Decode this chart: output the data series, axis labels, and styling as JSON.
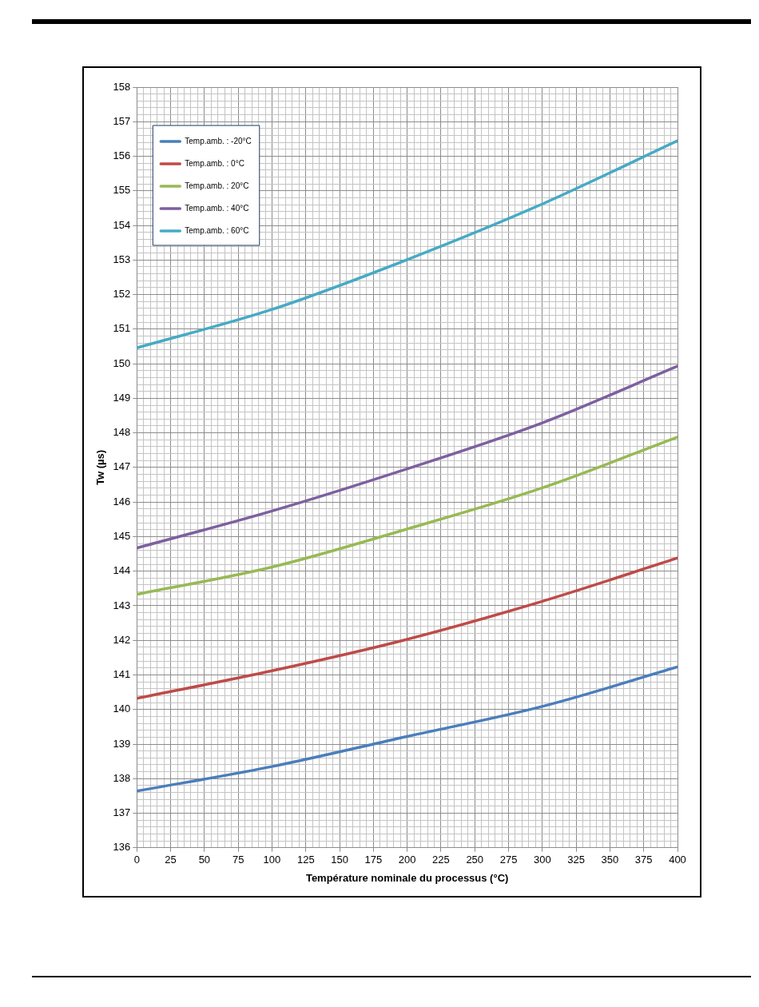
{
  "chart_data": {
    "type": "line",
    "xlabel": "Température nominale du processus (°C)",
    "ylabel": "Tw (µs)",
    "x": [
      0,
      100,
      200,
      300,
      400
    ],
    "series": [
      {
        "name": "Temp.amb. : -20°C",
        "color": "#4a7ebb",
        "values": [
          137.64,
          138.35,
          139.22,
          140.09,
          141.23
        ]
      },
      {
        "name": "Temp.amb. : 0°C",
        "color": "#be4b48",
        "values": [
          140.32,
          141.12,
          142.03,
          143.13,
          144.38
        ]
      },
      {
        "name": "Temp.amb. : 20°C",
        "color": "#98b954",
        "values": [
          143.33,
          144.12,
          145.22,
          146.41,
          147.88
        ]
      },
      {
        "name": "Temp.amb. : 40°C",
        "color": "#7d60a0",
        "values": [
          144.67,
          145.74,
          146.96,
          148.29,
          149.93
        ]
      },
      {
        "name": "Temp.amb. : 60°C",
        "color": "#46aac5",
        "values": [
          150.46,
          151.57,
          153.01,
          154.62,
          156.45
        ]
      }
    ],
    "xlim": [
      0,
      400
    ],
    "xticks": [
      0,
      {
        "value": 5,
        "label": null
      },
      {
        "value": 10,
        "label": null
      },
      {
        "value": 15,
        "label": null
      },
      {
        "value": 20,
        "label": null
      },
      25,
      {
        "value": 30,
        "label": null
      },
      {
        "value": 35,
        "label": null
      },
      {
        "value": 40,
        "label": null
      },
      {
        "value": 45,
        "label": null
      },
      50,
      {
        "value": 55,
        "label": null
      },
      {
        "value": 60,
        "label": null
      },
      {
        "value": 65,
        "label": null
      },
      {
        "value": 70,
        "label": null
      },
      75,
      {
        "value": 80,
        "label": null
      },
      {
        "value": 85,
        "label": null
      },
      {
        "value": 90,
        "label": null
      },
      {
        "value": 95,
        "label": null
      },
      100,
      {
        "value": 105,
        "label": null
      },
      {
        "value": 110,
        "label": null
      },
      {
        "value": 115,
        "label": null
      },
      {
        "value": 120,
        "label": null
      },
      125,
      {
        "value": 130,
        "label": null
      },
      {
        "value": 135,
        "label": null
      },
      {
        "value": 140,
        "label": null
      },
      {
        "value": 145,
        "label": null
      },
      150,
      {
        "value": 155,
        "label": null
      },
      {
        "value": 160,
        "label": null
      },
      {
        "value": 165,
        "label": null
      },
      {
        "value": 170,
        "label": null
      },
      175,
      {
        "value": 180,
        "label": null
      },
      {
        "value": 185,
        "label": null
      },
      {
        "value": 190,
        "label": null
      },
      {
        "value": 195,
        "label": null
      },
      200,
      {
        "value": 205,
        "label": null
      },
      {
        "value": 210,
        "label": null
      },
      {
        "value": 215,
        "label": null
      },
      {
        "value": 220,
        "label": null
      },
      225,
      {
        "value": 230,
        "label": null
      },
      {
        "value": 235,
        "label": null
      },
      {
        "value": 240,
        "label": null
      },
      {
        "value": 245,
        "label": null
      },
      250,
      {
        "value": 255,
        "label": null
      },
      {
        "value": 260,
        "label": null
      },
      {
        "value": 265,
        "label": null
      },
      {
        "value": 270,
        "label": null
      },
      275,
      {
        "value": 280,
        "label": null
      },
      {
        "value": 285,
        "label": null
      },
      {
        "value": 290,
        "label": null
      },
      {
        "value": 295,
        "label": null
      },
      300,
      {
        "value": 305,
        "label": null
      },
      {
        "value": 310,
        "label": null
      },
      {
        "value": 315,
        "label": null
      },
      {
        "value": 320,
        "label": null
      },
      325,
      {
        "value": 330,
        "label": null
      },
      {
        "value": 335,
        "label": null
      },
      {
        "value": 340,
        "label": null
      },
      {
        "value": 345,
        "label": null
      },
      350,
      {
        "value": 355,
        "label": null
      },
      {
        "value": 360,
        "label": null
      },
      {
        "value": 365,
        "label": null
      },
      {
        "value": 370,
        "label": null
      },
      375,
      {
        "value": 380,
        "label": null
      },
      {
        "value": 385,
        "label": null
      },
      {
        "value": 390,
        "label": null
      },
      {
        "value": 395,
        "label": null
      },
      400
    ],
    "ylim": [
      136,
      158
    ],
    "yticks": [
      136,
      {
        "value": 136.2,
        "label": null
      },
      {
        "value": 136.4,
        "label": null
      },
      {
        "value": 136.6,
        "label": null
      },
      {
        "value": 136.8,
        "label": null
      },
      137,
      {
        "value": 137.2,
        "label": null
      },
      {
        "value": 137.4,
        "label": null
      },
      {
        "value": 137.6,
        "label": null
      },
      {
        "value": 137.8,
        "label": null
      },
      138,
      {
        "value": 138.2,
        "label": null
      },
      {
        "value": 138.4,
        "label": null
      },
      {
        "value": 138.6,
        "label": null
      },
      {
        "value": 138.8,
        "label": null
      },
      139,
      {
        "value": 139.2,
        "label": null
      },
      {
        "value": 139.4,
        "label": null
      },
      {
        "value": 139.6,
        "label": null
      },
      {
        "value": 139.8,
        "label": null
      },
      140,
      {
        "value": 140.2,
        "label": null
      },
      {
        "value": 140.4,
        "label": null
      },
      {
        "value": 140.6,
        "label": null
      },
      {
        "value": 140.8,
        "label": null
      },
      141,
      {
        "value": 141.2,
        "label": null
      },
      {
        "value": 141.4,
        "label": null
      },
      {
        "value": 141.6,
        "label": null
      },
      {
        "value": 141.8,
        "label": null
      },
      142,
      {
        "value": 142.2,
        "label": null
      },
      {
        "value": 142.4,
        "label": null
      },
      {
        "value": 142.6,
        "label": null
      },
      {
        "value": 142.8,
        "label": null
      },
      143,
      {
        "value": 143.2,
        "label": null
      },
      {
        "value": 143.4,
        "label": null
      },
      {
        "value": 143.6,
        "label": null
      },
      {
        "value": 143.8,
        "label": null
      },
      144,
      {
        "value": 144.2,
        "label": null
      },
      {
        "value": 144.4,
        "label": null
      },
      {
        "value": 144.6,
        "label": null
      },
      {
        "value": 144.8,
        "label": null
      },
      145,
      {
        "value": 145.2,
        "label": null
      },
      {
        "value": 145.4,
        "label": null
      },
      {
        "value": 145.6,
        "label": null
      },
      {
        "value": 145.8,
        "label": null
      },
      146,
      {
        "value": 146.2,
        "label": null
      },
      {
        "value": 146.4,
        "label": null
      },
      {
        "value": 146.6,
        "label": null
      },
      {
        "value": 146.8,
        "label": null
      },
      147,
      {
        "value": 147.2,
        "label": null
      },
      {
        "value": 147.4,
        "label": null
      },
      {
        "value": 147.6,
        "label": null
      },
      {
        "value": 147.8,
        "label": null
      },
      148,
      {
        "value": 148.2,
        "label": null
      },
      {
        "value": 148.4,
        "label": null
      },
      {
        "value": 148.6,
        "label": null
      },
      {
        "value": 148.8,
        "label": null
      },
      149,
      {
        "value": 149.2,
        "label": null
      },
      {
        "value": 149.4,
        "label": null
      },
      {
        "value": 149.6,
        "label": null
      },
      {
        "value": 149.8,
        "label": null
      },
      150,
      {
        "value": 150.2,
        "label": null
      },
      {
        "value": 150.4,
        "label": null
      },
      {
        "value": 150.6,
        "label": null
      },
      {
        "value": 150.8,
        "label": null
      },
      151,
      {
        "value": 151.2,
        "label": null
      },
      {
        "value": 151.4,
        "label": null
      },
      {
        "value": 151.6,
        "label": null
      },
      {
        "value": 151.8,
        "label": null
      },
      152,
      {
        "value": 152.2,
        "label": null
      },
      {
        "value": 152.4,
        "label": null
      },
      {
        "value": 152.6,
        "label": null
      },
      {
        "value": 152.8,
        "label": null
      },
      153,
      {
        "value": 153.2,
        "label": null
      },
      {
        "value": 153.4,
        "label": null
      },
      {
        "value": 153.6,
        "label": null
      },
      {
        "value": 153.8,
        "label": null
      },
      154,
      {
        "value": 154.2,
        "label": null
      },
      {
        "value": 154.4,
        "label": null
      },
      {
        "value": 154.6,
        "label": null
      },
      {
        "value": 154.8,
        "label": null
      },
      155,
      {
        "value": 155.2,
        "label": null
      },
      {
        "value": 155.4,
        "label": null
      },
      {
        "value": 155.6,
        "label": null
      },
      {
        "value": 155.8,
        "label": null
      },
      156,
      {
        "value": 156.2,
        "label": null
      },
      {
        "value": 156.4,
        "label": null
      },
      {
        "value": 156.6,
        "label": null
      },
      {
        "value": 156.8,
        "label": null
      },
      157,
      {
        "value": 157.2,
        "label": null
      },
      {
        "value": 157.4,
        "label": null
      },
      {
        "value": 157.6,
        "label": null
      },
      {
        "value": 157.8,
        "label": null
      },
      158
    ],
    "grid": true,
    "legend": "top left",
    "marker": "none",
    "line_style": "solid"
  }
}
